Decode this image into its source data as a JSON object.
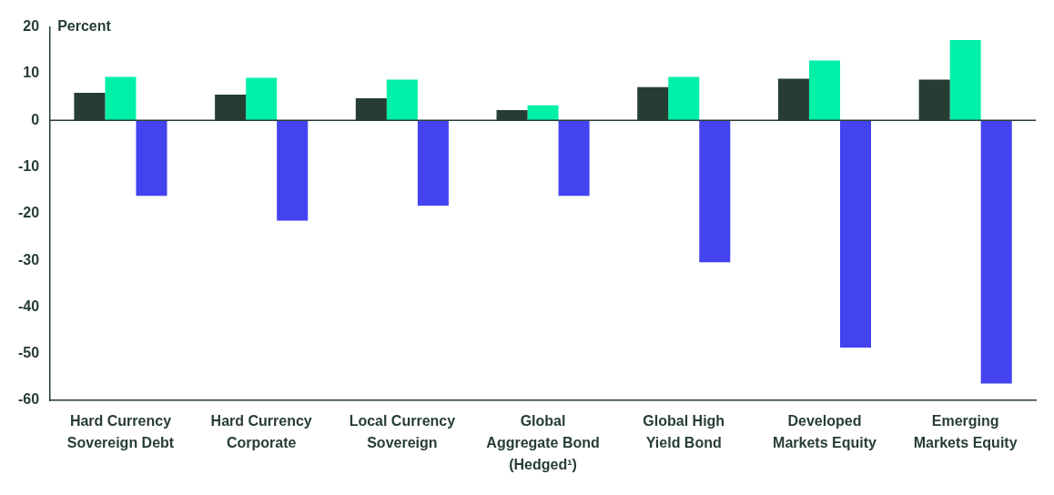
{
  "chart_data": {
    "type": "bar",
    "ylabel": "Percent",
    "categories": [
      "Hard Currency Sovereign Debt",
      "Hard Currency Corporate",
      "Local Currency Sovereign",
      "Global Aggregate Bond (Hedged¹)",
      "Global High Yield Bond",
      "Developed Markets Equity",
      "Emerging Markets Equity"
    ],
    "series": [
      {
        "color": "#263d33",
        "values": [
          5.9,
          5.5,
          4.7,
          2.2,
          7.1,
          8.9,
          8.7
        ]
      },
      {
        "color": "#00f0a8",
        "values": [
          9.3,
          9.1,
          8.7,
          3.2,
          9.3,
          12.8,
          17.2
        ]
      },
      {
        "color": "#4343f0",
        "values": [
          -16.2,
          -21.5,
          -18.3,
          -16.2,
          -30.4,
          -48.7,
          -56.4
        ]
      }
    ],
    "ylim": [
      -60,
      20
    ],
    "yticks": [
      -60,
      -50,
      -40,
      -30,
      -20,
      -10,
      0,
      10,
      20
    ],
    "ref_lines": [
      {
        "axis": "y",
        "value": 0,
        "color": "#263d33"
      }
    ],
    "grid": false,
    "legend": false
  }
}
